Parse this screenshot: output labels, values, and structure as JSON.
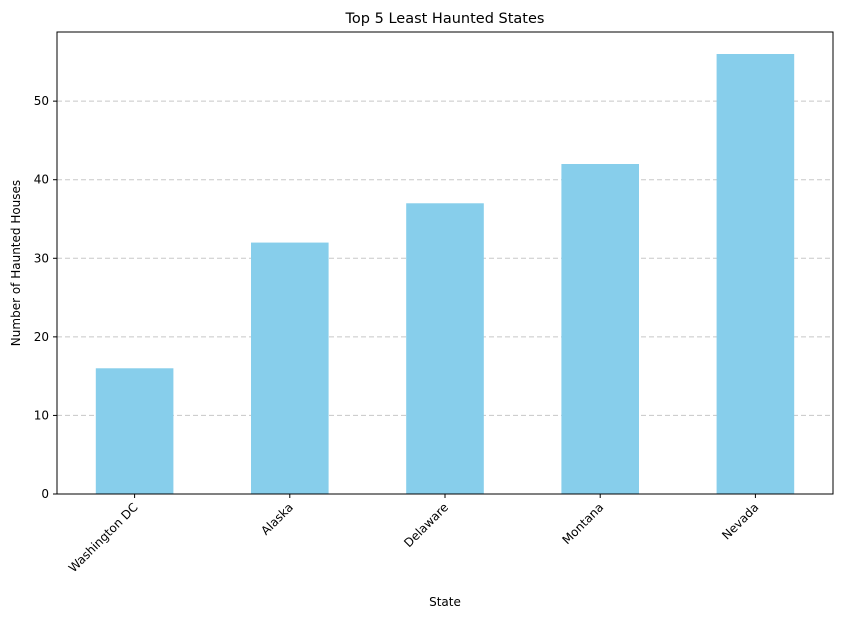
{
  "chart_data": {
    "type": "bar",
    "title": "Top 5 Least Haunted States",
    "xlabel": "State",
    "ylabel": "Number of Haunted Houses",
    "categories": [
      "Washington DC",
      "Alaska",
      "Delaware",
      "Montana",
      "Nevada"
    ],
    "values": [
      16,
      32,
      37,
      42,
      56
    ],
    "ylim": [
      0,
      58.8
    ],
    "yticks": [
      0,
      10,
      20,
      30,
      40,
      50
    ],
    "xtick_rotation_deg": 45,
    "grid": {
      "axis": "y",
      "style": "dashed",
      "enabled": true
    },
    "legend": "none",
    "colors": {
      "bar": "#87ceeb",
      "grid": "#c8c8c8",
      "axis": "#000000",
      "text": "#000000"
    }
  }
}
